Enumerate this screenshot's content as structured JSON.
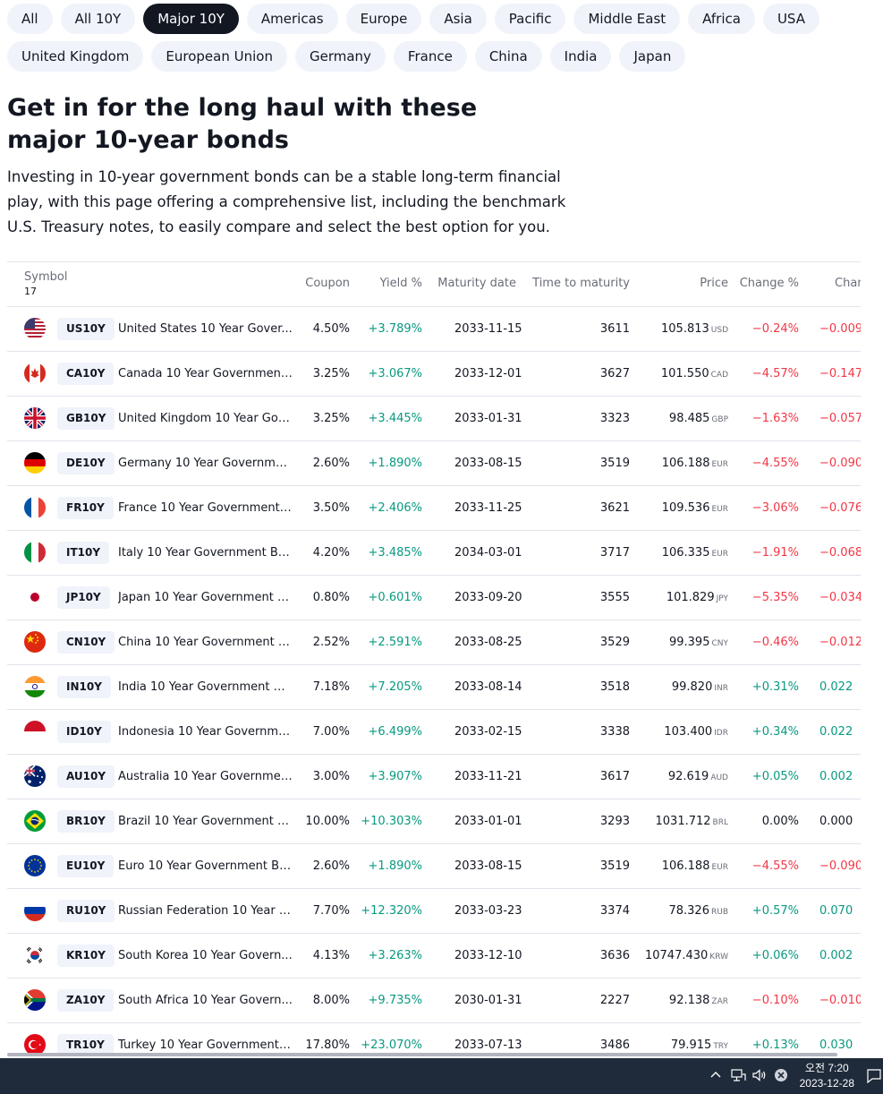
{
  "filters": {
    "row1": [
      "All",
      "All 10Y",
      "Major 10Y",
      "Americas",
      "Europe",
      "Asia",
      "Pacific",
      "Middle East",
      "Africa",
      "USA"
    ],
    "row2": [
      "United Kingdom",
      "European Union",
      "Germany",
      "France",
      "China",
      "India",
      "Japan"
    ],
    "active": "Major 10Y"
  },
  "heading": {
    "title": "Get in for the long haul with these major 10-year bonds",
    "description": "Investing in 10-year government bonds can be a stable long-term financial play, with this page offering a comprehensive list, including the benchmark U.S. Treasury notes, to easily compare and select the best option for you."
  },
  "table": {
    "headers": {
      "symbol": "Symbol",
      "count": "17",
      "coupon": "Coupon",
      "yield": "Yield %",
      "maturity": "Maturity date",
      "ttm": "Time to maturity",
      "price": "Price",
      "change_pct": "Change %",
      "change_abs": "Chan"
    },
    "rows": [
      {
        "flag": "us",
        "ticker": "US10Y",
        "name": "United States 10 Year Gover...",
        "coupon": "4.50%",
        "yield": "+3.789%",
        "maturity": "2033-11-15",
        "ttm": "3611",
        "price": "105.813",
        "currency": "USD",
        "change_pct": "−0.24%",
        "change_abs": "−0.009",
        "dir": "neg"
      },
      {
        "flag": "ca",
        "ticker": "CA10Y",
        "name": "Canada 10 Year Government ...",
        "coupon": "3.25%",
        "yield": "+3.067%",
        "maturity": "2033-12-01",
        "ttm": "3627",
        "price": "101.550",
        "currency": "CAD",
        "change_pct": "−4.57%",
        "change_abs": "−0.147",
        "dir": "neg"
      },
      {
        "flag": "gb",
        "ticker": "GB10Y",
        "name": "United Kingdom 10 Year Gov...",
        "coupon": "3.25%",
        "yield": "+3.445%",
        "maturity": "2033-01-31",
        "ttm": "3323",
        "price": "98.485",
        "currency": "GBP",
        "change_pct": "−1.63%",
        "change_abs": "−0.057",
        "dir": "neg"
      },
      {
        "flag": "de",
        "ticker": "DE10Y",
        "name": "Germany 10 Year Governmen...",
        "coupon": "2.60%",
        "yield": "+1.890%",
        "maturity": "2033-08-15",
        "ttm": "3519",
        "price": "106.188",
        "currency": "EUR",
        "change_pct": "−4.55%",
        "change_abs": "−0.090",
        "dir": "neg"
      },
      {
        "flag": "fr",
        "ticker": "FR10Y",
        "name": "France 10 Year Government ...",
        "coupon": "3.50%",
        "yield": "+2.406%",
        "maturity": "2033-11-25",
        "ttm": "3621",
        "price": "109.536",
        "currency": "EUR",
        "change_pct": "−3.06%",
        "change_abs": "−0.076",
        "dir": "neg"
      },
      {
        "flag": "it",
        "ticker": "IT10Y",
        "name": "Italy 10 Year Government Bo...",
        "coupon": "4.20%",
        "yield": "+3.485%",
        "maturity": "2034-03-01",
        "ttm": "3717",
        "price": "106.335",
        "currency": "EUR",
        "change_pct": "−1.91%",
        "change_abs": "−0.068",
        "dir": "neg"
      },
      {
        "flag": "jp",
        "ticker": "JP10Y",
        "name": "Japan 10 Year Government B...",
        "coupon": "0.80%",
        "yield": "+0.601%",
        "maturity": "2033-09-20",
        "ttm": "3555",
        "price": "101.829",
        "currency": "JPY",
        "change_pct": "−5.35%",
        "change_abs": "−0.034",
        "dir": "neg"
      },
      {
        "flag": "cn",
        "ticker": "CN10Y",
        "name": "China 10 Year Government B...",
        "coupon": "2.52%",
        "yield": "+2.591%",
        "maturity": "2033-08-25",
        "ttm": "3529",
        "price": "99.395",
        "currency": "CNY",
        "change_pct": "−0.46%",
        "change_abs": "−0.012",
        "dir": "neg"
      },
      {
        "flag": "in",
        "ticker": "IN10Y",
        "name": "India 10 Year Government Bo...",
        "coupon": "7.18%",
        "yield": "+7.205%",
        "maturity": "2033-08-14",
        "ttm": "3518",
        "price": "99.820",
        "currency": "INR",
        "change_pct": "+0.31%",
        "change_abs": "0.022",
        "dir": "pos"
      },
      {
        "flag": "id",
        "ticker": "ID10Y",
        "name": "Indonesia 10 Year Governme...",
        "coupon": "7.00%",
        "yield": "+6.499%",
        "maturity": "2033-02-15",
        "ttm": "3338",
        "price": "103.400",
        "currency": "IDR",
        "change_pct": "+0.34%",
        "change_abs": "0.022",
        "dir": "pos"
      },
      {
        "flag": "au",
        "ticker": "AU10Y",
        "name": "Australia 10 Year Governmen...",
        "coupon": "3.00%",
        "yield": "+3.907%",
        "maturity": "2033-11-21",
        "ttm": "3617",
        "price": "92.619",
        "currency": "AUD",
        "change_pct": "+0.05%",
        "change_abs": "0.002",
        "dir": "pos"
      },
      {
        "flag": "br",
        "ticker": "BR10Y",
        "name": "Brazil 10 Year Government B...",
        "coupon": "10.00%",
        "yield": "+10.303%",
        "maturity": "2033-01-01",
        "ttm": "3293",
        "price": "1031.712",
        "currency": "BRL",
        "change_pct": "0.00%",
        "change_abs": "0.000",
        "dir": "zero"
      },
      {
        "flag": "eu",
        "ticker": "EU10Y",
        "name": "Euro 10 Year Government Bo...",
        "coupon": "2.60%",
        "yield": "+1.890%",
        "maturity": "2033-08-15",
        "ttm": "3519",
        "price": "106.188",
        "currency": "EUR",
        "change_pct": "−4.55%",
        "change_abs": "−0.090",
        "dir": "neg"
      },
      {
        "flag": "ru",
        "ticker": "RU10Y",
        "name": "Russian Federation 10 Year G...",
        "coupon": "7.70%",
        "yield": "+12.320%",
        "maturity": "2033-03-23",
        "ttm": "3374",
        "price": "78.326",
        "currency": "RUB",
        "change_pct": "+0.57%",
        "change_abs": "0.070",
        "dir": "pos"
      },
      {
        "flag": "kr",
        "ticker": "KR10Y",
        "name": "South Korea 10 Year Govern...",
        "coupon": "4.13%",
        "yield": "+3.263%",
        "maturity": "2033-12-10",
        "ttm": "3636",
        "price": "10747.430",
        "currency": "KRW",
        "change_pct": "+0.06%",
        "change_abs": "0.002",
        "dir": "pos"
      },
      {
        "flag": "za",
        "ticker": "ZA10Y",
        "name": "South Africa 10 Year Govern...",
        "coupon": "8.00%",
        "yield": "+9.735%",
        "maturity": "2030-01-31",
        "ttm": "2227",
        "price": "92.138",
        "currency": "ZAR",
        "change_pct": "−0.10%",
        "change_abs": "−0.010",
        "dir": "neg"
      },
      {
        "flag": "tr",
        "ticker": "TR10Y",
        "name": "Turkey 10 Year Government ...",
        "coupon": "17.80%",
        "yield": "+23.070%",
        "maturity": "2033-07-13",
        "ttm": "3486",
        "price": "79.915",
        "currency": "TRY",
        "change_pct": "+0.13%",
        "change_abs": "0.030",
        "dir": "pos"
      }
    ]
  },
  "taskbar": {
    "time": "오전 7:20",
    "date": "2023-12-28"
  },
  "colors": {
    "positive": "#089981",
    "negative": "#f23645",
    "chip_bg": "#f0f3fa",
    "chip_active_bg": "#131722",
    "taskbar_bg": "#1f2b3a"
  }
}
